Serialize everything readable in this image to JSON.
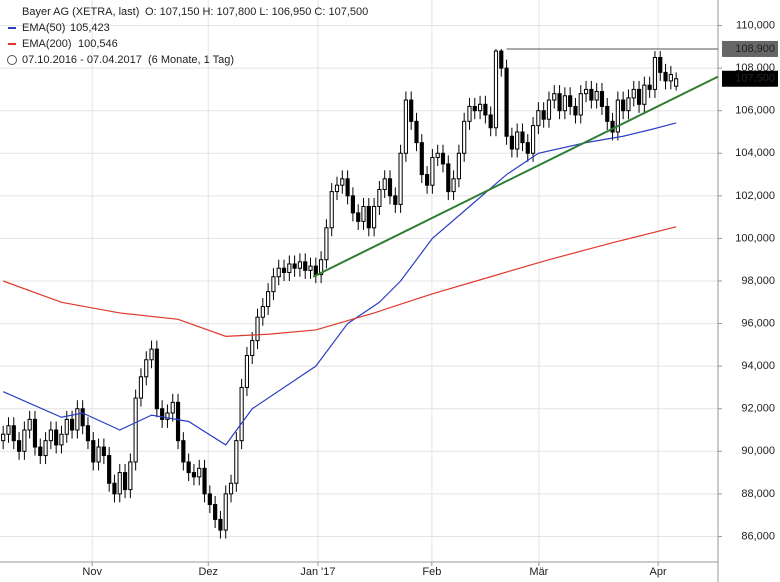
{
  "chart_data": {
    "type": "candlestick",
    "title": "Bayer AG (XETRA, last)",
    "ohlc_label": "O: 107,150  H: 107,800  L: 106,950  C: 107,500",
    "period": "07.10.2016 - 07.04.2017",
    "period_note": "(6 Monate, 1 Tag)",
    "xlim": [
      -0.6,
      134.9
    ],
    "ylim": [
      84.8,
      111.2
    ],
    "yticks": [
      {
        "value": 86,
        "label": "86,000"
      },
      {
        "value": 88,
        "label": "88,000"
      },
      {
        "value": 90,
        "label": "90,000"
      },
      {
        "value": 92,
        "label": "92,000"
      },
      {
        "value": 94,
        "label": "94,000"
      },
      {
        "value": 96,
        "label": "96,000"
      },
      {
        "value": 98,
        "label": "98,000"
      },
      {
        "value": 100,
        "label": "100,000"
      },
      {
        "value": 102,
        "label": "102,000"
      },
      {
        "value": 104,
        "label": "104,000"
      },
      {
        "value": 106,
        "label": "106,000"
      },
      {
        "value": 108,
        "label": "108,000"
      },
      {
        "value": 110,
        "label": "110,000"
      }
    ],
    "xticks": [
      {
        "value": 16.8,
        "label": "Nov"
      },
      {
        "value": 38.7,
        "label": "Dez"
      },
      {
        "value": 59.4,
        "label": "Jan '17"
      },
      {
        "value": 80.9,
        "label": "Feb"
      },
      {
        "value": 101.1,
        "label": "Mär"
      },
      {
        "value": 123.6,
        "label": "Apr"
      }
    ],
    "grid": true,
    "color": "#000000",
    "open": [
      90.5,
      90.8,
      91.2,
      90.5,
      90.0,
      91.0,
      91.5,
      90.2,
      89.8,
      90.5,
      91.0,
      90.3,
      90.8,
      91.5,
      91.0,
      92.0,
      91.2,
      90.5,
      89.5,
      90.2,
      89.8,
      88.5,
      88.0,
      89.0,
      88.2,
      89.5,
      92.5,
      93.5,
      94.3,
      94.8,
      92.0,
      91.5,
      91.8,
      92.3,
      90.5,
      89.5,
      89.0,
      88.8,
      89.2,
      88.0,
      87.5,
      86.8,
      86.3,
      88.0,
      88.5,
      90.5,
      93.0,
      94.5,
      95.2,
      96.3,
      96.8,
      97.5,
      98.2,
      98.6,
      98.4,
      98.8,
      98.6,
      98.9,
      98.5,
      98.7,
      98.3,
      99.0,
      100.5,
      102.2,
      102.5,
      102.8,
      102.0,
      101.2,
      100.8,
      101.5,
      100.5,
      101.5,
      102.3,
      102.8,
      102.0,
      101.6,
      104.0,
      106.5,
      105.5,
      104.5,
      103.0,
      102.5,
      103.8,
      104.0,
      103.5,
      102.2,
      102.8,
      104.0,
      105.5,
      106.2,
      106.0,
      106.3,
      105.8,
      105.2,
      108.8,
      108.0,
      104.8,
      104.2,
      105.0,
      104.5,
      104.0,
      105.3,
      106.0,
      105.6,
      106.5,
      106.8,
      106.0,
      106.7,
      106.2,
      105.8,
      106.8,
      107.0,
      106.5,
      106.9,
      106.2,
      105.5,
      105.0,
      106.5,
      106.0,
      106.6,
      107.0,
      106.3,
      107.2,
      107.0,
      108.5,
      107.8,
      107.4,
      107.15
    ],
    "high": [
      91.2,
      91.6,
      91.6,
      90.9,
      91.4,
      91.9,
      91.9,
      90.6,
      90.9,
      91.4,
      91.4,
      91.2,
      91.9,
      91.9,
      92.4,
      92.4,
      91.6,
      90.9,
      90.6,
      90.6,
      90.2,
      88.9,
      89.4,
      89.4,
      89.9,
      92.9,
      93.9,
      94.7,
      95.2,
      95.2,
      92.4,
      92.2,
      92.7,
      92.7,
      90.9,
      89.9,
      89.4,
      89.6,
      89.6,
      88.4,
      87.9,
      87.2,
      88.4,
      88.9,
      90.9,
      93.4,
      94.9,
      95.6,
      96.7,
      97.2,
      97.9,
      98.6,
      99.0,
      99.0,
      99.2,
      99.2,
      99.3,
      99.3,
      99.1,
      99.1,
      99.4,
      100.9,
      102.6,
      102.9,
      103.2,
      103.2,
      102.4,
      101.6,
      101.9,
      101.9,
      101.9,
      102.7,
      103.2,
      103.2,
      102.4,
      104.4,
      106.9,
      106.9,
      105.9,
      104.9,
      103.4,
      104.2,
      104.4,
      104.4,
      103.9,
      103.2,
      104.4,
      105.9,
      106.6,
      106.6,
      106.7,
      106.7,
      106.2,
      108.9,
      108.9,
      108.4,
      105.2,
      105.4,
      105.4,
      104.9,
      105.7,
      106.4,
      106.4,
      106.9,
      107.2,
      107.2,
      107.1,
      107.1,
      106.6,
      107.2,
      107.4,
      107.4,
      107.3,
      107.3,
      106.6,
      105.9,
      106.9,
      106.9,
      107.0,
      107.4,
      107.4,
      107.6,
      107.6,
      108.8,
      108.8,
      108.2,
      108.1,
      107.8
    ],
    "low": [
      90.1,
      90.4,
      90.1,
      89.6,
      89.6,
      90.6,
      89.8,
      89.4,
      89.4,
      90.1,
      89.9,
      89.9,
      90.4,
      90.6,
      90.6,
      90.8,
      90.1,
      89.1,
      89.1,
      89.4,
      88.1,
      87.6,
      87.6,
      87.8,
      87.8,
      89.1,
      92.1,
      93.1,
      93.9,
      91.6,
      91.1,
      91.1,
      91.4,
      90.1,
      89.1,
      88.6,
      88.4,
      88.4,
      87.6,
      87.1,
      86.4,
      85.9,
      85.9,
      87.6,
      88.1,
      90.1,
      92.6,
      94.1,
      94.8,
      95.9,
      96.4,
      97.1,
      97.8,
      98.0,
      98.0,
      98.2,
      98.2,
      98.1,
      98.1,
      97.9,
      97.9,
      98.6,
      100.1,
      101.8,
      102.1,
      101.6,
      100.8,
      100.4,
      100.4,
      100.1,
      100.1,
      101.1,
      101.9,
      101.6,
      101.2,
      101.2,
      103.6,
      105.1,
      104.1,
      102.6,
      102.1,
      102.1,
      103.4,
      103.1,
      101.8,
      101.8,
      102.4,
      103.6,
      105.1,
      105.6,
      105.6,
      105.4,
      104.8,
      104.8,
      107.6,
      104.4,
      103.8,
      103.8,
      104.1,
      103.6,
      103.6,
      104.9,
      105.2,
      105.2,
      106.1,
      105.6,
      105.6,
      105.8,
      105.4,
      105.4,
      106.4,
      106.1,
      106.1,
      105.8,
      105.1,
      104.6,
      104.6,
      105.6,
      105.6,
      106.2,
      105.9,
      105.9,
      106.6,
      106.6,
      107.4,
      107.0,
      107.0,
      106.95
    ],
    "close": [
      90.8,
      91.2,
      90.5,
      90.0,
      91.0,
      91.5,
      90.2,
      89.8,
      90.5,
      91.0,
      90.3,
      90.8,
      91.5,
      91.0,
      92.0,
      91.2,
      90.5,
      89.5,
      90.2,
      89.8,
      88.5,
      88.0,
      89.0,
      88.2,
      89.5,
      92.5,
      93.5,
      94.3,
      94.8,
      92.0,
      91.5,
      91.8,
      92.3,
      90.5,
      89.5,
      89.0,
      88.8,
      89.2,
      88.0,
      87.5,
      86.8,
      86.3,
      88.0,
      88.5,
      90.5,
      93.0,
      94.5,
      95.2,
      96.3,
      96.8,
      97.5,
      98.2,
      98.6,
      98.4,
      98.8,
      98.6,
      98.9,
      98.5,
      98.7,
      98.3,
      99.0,
      100.5,
      102.2,
      102.5,
      102.8,
      102.0,
      101.2,
      100.8,
      101.5,
      100.5,
      101.5,
      102.3,
      102.8,
      102.0,
      101.6,
      104.0,
      106.5,
      105.5,
      104.5,
      103.0,
      102.5,
      103.8,
      104.0,
      103.5,
      102.2,
      102.8,
      104.0,
      105.5,
      106.2,
      106.0,
      106.3,
      105.8,
      105.2,
      108.8,
      108.0,
      104.8,
      104.2,
      105.0,
      104.5,
      104.0,
      105.3,
      106.0,
      105.6,
      106.5,
      106.8,
      106.0,
      106.7,
      106.2,
      105.8,
      106.8,
      107.0,
      106.5,
      106.9,
      106.2,
      105.5,
      105.0,
      106.5,
      106.0,
      106.6,
      107.0,
      106.3,
      107.2,
      107.0,
      108.5,
      107.8,
      107.4,
      107.7,
      107.5
    ],
    "series": [
      {
        "name": "EMA(50)",
        "value_label": "105,423",
        "color": "#2b3fc4",
        "x": [
          0,
          11,
          15,
          22,
          28,
          35,
          42,
          47,
          59,
          65,
          71,
          75,
          81,
          88,
          95,
          101,
          110,
          117,
          122,
          127
        ],
        "values": [
          92.8,
          91.6,
          91.8,
          91.0,
          91.7,
          91.4,
          90.3,
          92.0,
          94.0,
          96.0,
          97.0,
          98.0,
          100.0,
          101.5,
          103.0,
          104.0,
          104.5,
          104.8,
          105.1,
          105.423
        ]
      },
      {
        "name": "EMA(200)",
        "value_label": "100,546",
        "color": "#e0392c",
        "x": [
          0,
          11,
          22,
          33,
          42,
          50,
          59,
          70,
          81,
          92,
          103,
          115,
          127
        ],
        "values": [
          98.0,
          97.0,
          96.5,
          96.2,
          95.4,
          95.5,
          95.7,
          96.5,
          97.4,
          98.2,
          99.0,
          99.8,
          100.546
        ]
      }
    ],
    "trendline": {
      "color": "#2e7d32",
      "x": [
        58.5,
        134.9
      ],
      "values": [
        98.2,
        107.6
      ]
    },
    "resistance": {
      "color": "#555555",
      "x": [
        95,
        134.9
      ],
      "values": [
        108.9,
        108.9
      ],
      "label": "108,900"
    },
    "last_price": {
      "value": 107.5,
      "label": "107,500"
    }
  }
}
